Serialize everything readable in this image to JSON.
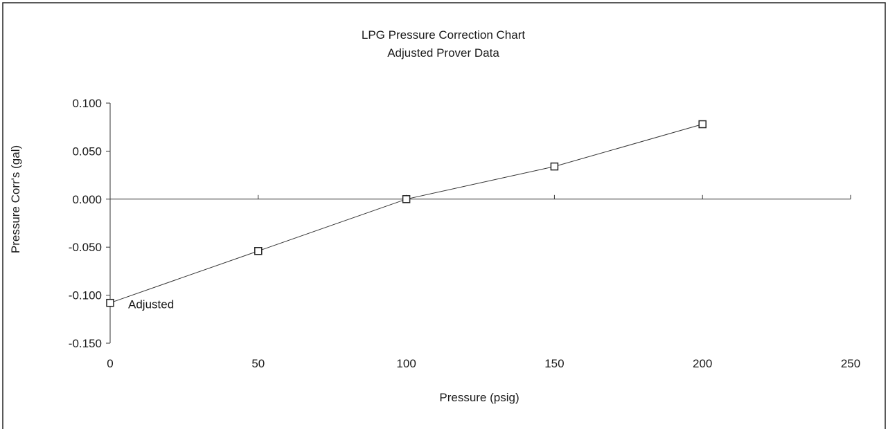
{
  "chart_data": {
    "type": "line",
    "title": "LPG Pressure Correction Chart",
    "subtitle": "Adjusted Prover Data",
    "xlabel": "Pressure (psig)",
    "ylabel": "Pressure Corr's (gal)",
    "xlim": [
      0,
      250
    ],
    "ylim": [
      -0.15,
      0.1
    ],
    "x_ticks": [
      "0",
      "50",
      "100",
      "150",
      "200",
      "250"
    ],
    "y_ticks": [
      "0.100",
      "0.050",
      "0.000",
      "-0.050",
      "-0.100",
      "-0.150"
    ],
    "x_tick_values": [
      0,
      50,
      100,
      150,
      200,
      250
    ],
    "y_tick_values": [
      0.1,
      0.05,
      0.0,
      -0.05,
      -0.1,
      -0.15
    ],
    "grid": false,
    "legend": "none",
    "series": [
      {
        "name": "Adjusted",
        "marker": "square",
        "x": [
          0,
          50,
          100,
          150,
          200
        ],
        "y": [
          -0.108,
          -0.054,
          0.0,
          0.034,
          0.078
        ]
      }
    ],
    "annotations": [
      {
        "text": "Adjusted",
        "x": 0,
        "y": -0.108
      }
    ]
  }
}
